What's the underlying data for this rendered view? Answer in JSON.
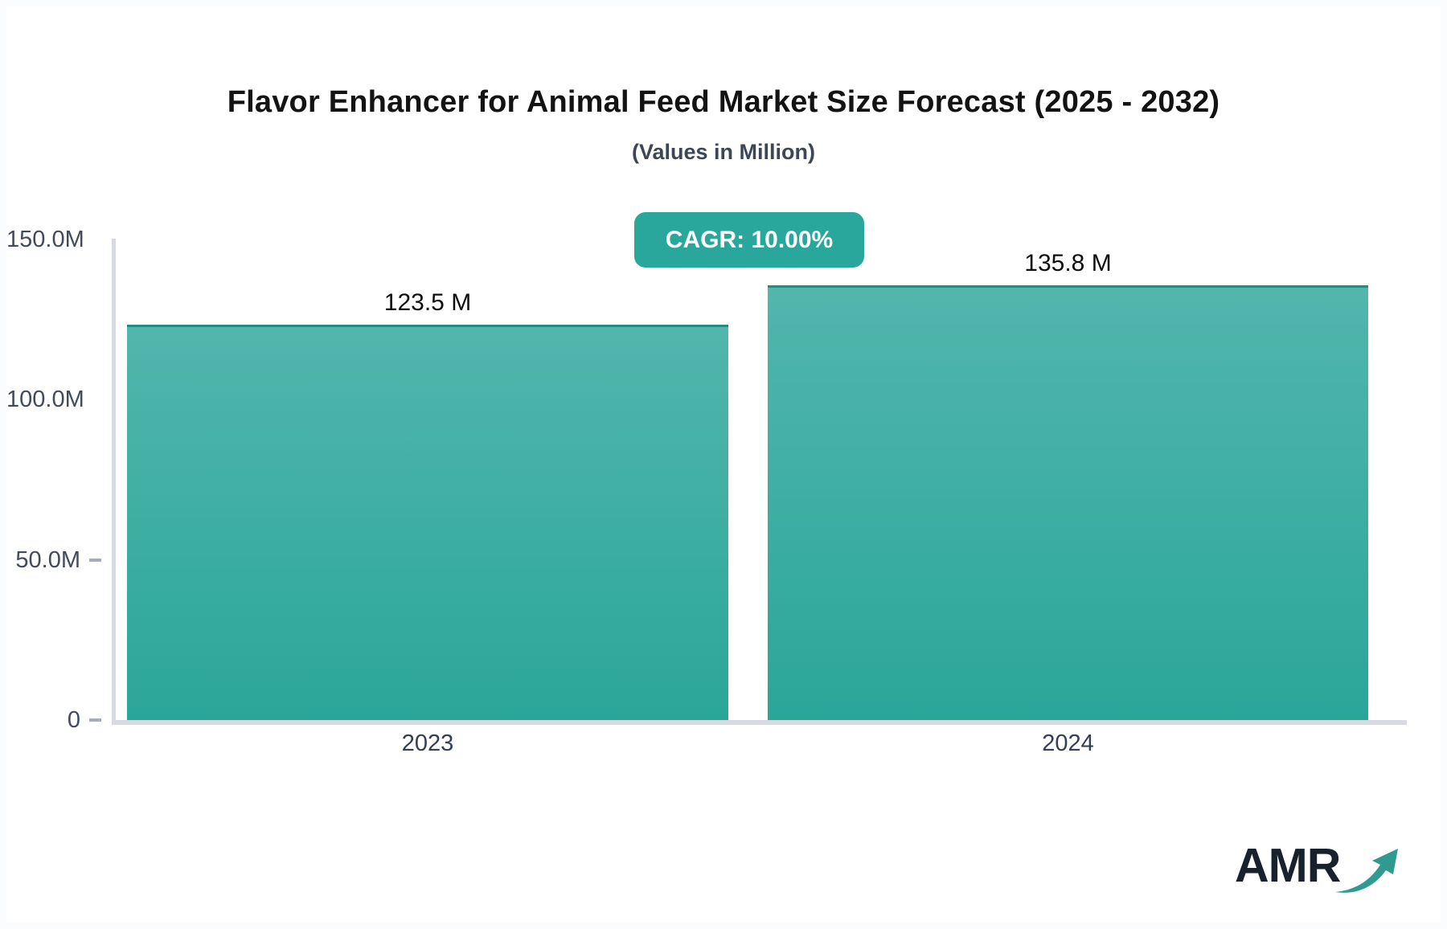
{
  "header": {
    "title": "Flavor Enhancer for Animal Feed Market Size Forecast (2025 - 2032)",
    "subtitle": "(Values in Million)"
  },
  "badge": {
    "label": "CAGR: 10.00%",
    "bg_color": "#2aa79c",
    "text_color": "#ffffff"
  },
  "chart_data": {
    "type": "bar",
    "title": "Flavor Enhancer for Animal Feed Market Size Forecast (2025 - 2032)",
    "subtitle": "(Values in Million)",
    "unit": "Million",
    "categories": [
      "2023",
      "2024"
    ],
    "values": [
      123.5,
      135.8
    ],
    "value_labels": [
      "123.5 M",
      "135.8 M"
    ],
    "cagr_percent": "10.00%",
    "xlabel": "",
    "ylabel": "",
    "ylim": [
      0,
      150
    ],
    "grid": false,
    "legend_position": "none",
    "y_axis": {
      "ticks": [
        {
          "label": "150.0M",
          "value": 150,
          "dash": false
        },
        {
          "label": "100.0M",
          "value": 100,
          "dash": false
        },
        {
          "label": "50.0M",
          "value": 50,
          "dash": true
        },
        {
          "label": "0",
          "value": 0,
          "dash": true
        }
      ]
    },
    "bar_colors": {
      "gradient_top": "#52b6ad",
      "gradient_bottom": "#2aa699",
      "border_top": "#1f8e83"
    }
  },
  "logo": {
    "text": "AMR",
    "arrow_icon": "trend-up-arrow-icon",
    "arrow_color": "#2f9a90"
  }
}
